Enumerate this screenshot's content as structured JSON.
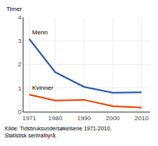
{
  "chart_data": {
    "type": "line",
    "x": [
      1971,
      1980,
      1990,
      2000,
      2010
    ],
    "series": [
      {
        "name": "Menn",
        "color": "#2255bb",
        "values": [
          3.08,
          1.67,
          1.05,
          0.8,
          0.82
        ]
      },
      {
        "name": "Kvinner",
        "color": "#ee4400",
        "values": [
          0.72,
          0.47,
          0.5,
          0.23,
          0.17
        ]
      }
    ],
    "ylabel": "Timer",
    "annotations": [
      "Kilde: Tidsbruksundersøkelsene 1971-2010,",
      "Statistisk sentralbyrå."
    ],
    "xlim": [
      1969,
      2013
    ],
    "xticks": [
      1971,
      1980,
      1990,
      2000,
      2010
    ],
    "ylim": [
      0,
      4
    ],
    "yticks": [
      0,
      1,
      2,
      3,
      4
    ],
    "grid": true
  }
}
